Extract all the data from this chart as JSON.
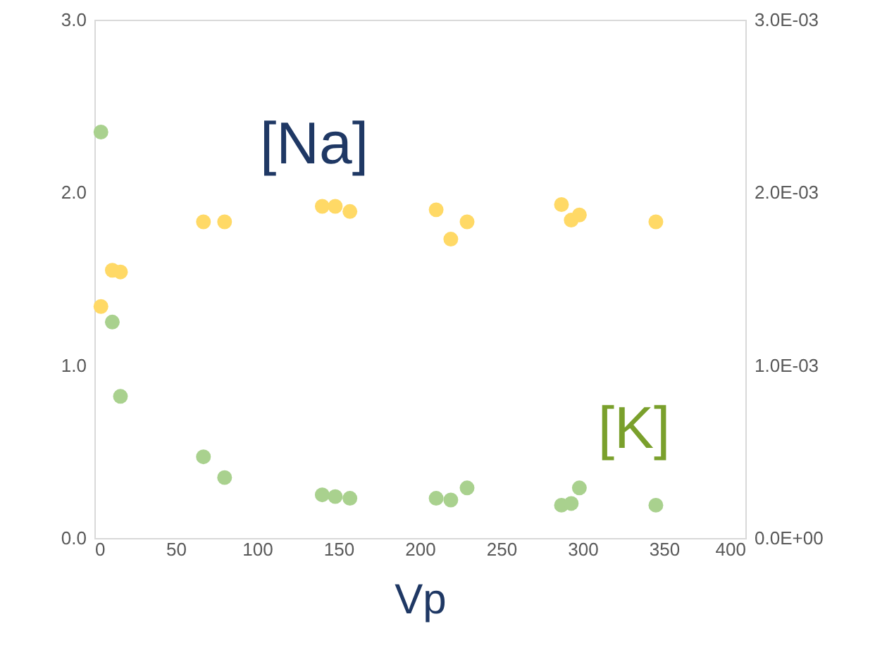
{
  "chart_data": {
    "type": "scatter",
    "xlabel": "Vp",
    "xlim": [
      0,
      400
    ],
    "xticks": [
      0,
      50,
      100,
      150,
      200,
      250,
      300,
      350,
      400
    ],
    "ylim": [
      0,
      3.0
    ],
    "yticks": [
      {
        "value": 0,
        "label": "0.0"
      },
      {
        "value": 1,
        "label": "1.0"
      },
      {
        "value": 2,
        "label": "2.0"
      },
      {
        "value": 3,
        "label": "3.0"
      }
    ],
    "y2lim": [
      0,
      0.003
    ],
    "y2ticks": [
      {
        "value": 0,
        "label": "0.0E+00"
      },
      {
        "value": 0.001,
        "label": "1.0E-03"
      },
      {
        "value": 0.002,
        "label": "2.0E-03"
      },
      {
        "value": 0.003,
        "label": "3.0E-03"
      }
    ],
    "marker": "circle",
    "grid": false,
    "series": [
      {
        "color": "#ffd966",
        "x": [
          4,
          11,
          16,
          67,
          80,
          140,
          148,
          157,
          210,
          219,
          229,
          287,
          293,
          298,
          345
        ],
        "values": [
          1.34,
          1.55,
          1.54,
          1.83,
          1.83,
          1.92,
          1.92,
          1.89,
          1.9,
          1.73,
          1.83,
          1.93,
          1.84,
          1.87,
          1.83
        ]
      },
      {
        "color": "#a9d18e",
        "axis": "y2",
        "x": [
          4,
          11,
          16,
          67,
          80,
          140,
          148,
          157,
          210,
          219,
          229,
          287,
          293,
          298,
          345
        ],
        "values": [
          0.00235,
          0.00125,
          0.00082,
          0.00047,
          0.00035,
          0.00025,
          0.00024,
          0.00023,
          0.00023,
          0.00022,
          0.00029,
          0.00019,
          0.0002,
          0.00029,
          0.00019
        ]
      }
    ],
    "annotations": [
      "[Na]",
      "[K]"
    ]
  }
}
